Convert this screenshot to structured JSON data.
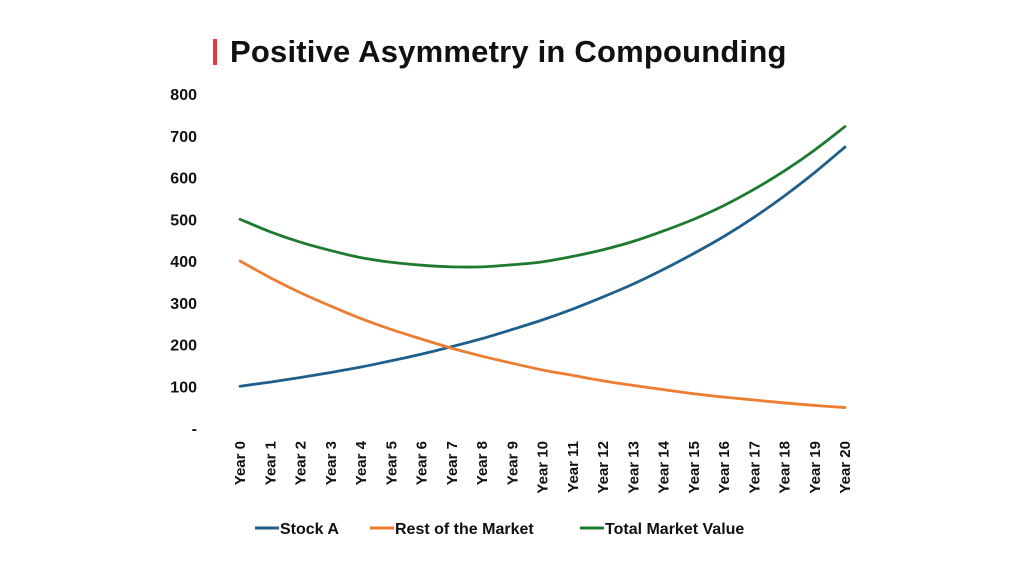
{
  "chart_data": {
    "type": "line",
    "title": "Positive Asymmetry in Compounding",
    "xlabel": "",
    "ylabel": "",
    "categories": [
      "Year 0",
      "Year 1",
      "Year 2",
      "Year 3",
      "Year 4",
      "Year 5",
      "Year 6",
      "Year 7",
      "Year 8",
      "Year 9",
      "Year 10",
      "Year 11",
      "Year 12",
      "Year 13",
      "Year 14",
      "Year 15",
      "Year 16",
      "Year 17",
      "Year 18",
      "Year 19",
      "Year 20"
    ],
    "ylim": [
      0,
      800
    ],
    "yticks": [
      0,
      100,
      200,
      300,
      400,
      500,
      600,
      700,
      800
    ],
    "ytick_labels": [
      "-",
      "100",
      "200",
      "300",
      "400",
      "500",
      "600",
      "700",
      "800"
    ],
    "grid": false,
    "legend_position": "bottom",
    "series": [
      {
        "name": "Stock A",
        "color": "#1f5f8b",
        "values": [
          100,
          110,
          121,
          133,
          146,
          161,
          177,
          195,
          214,
          236,
          259,
          285,
          314,
          345,
          380,
          418,
          459,
          505,
          556,
          612,
          673
        ]
      },
      {
        "name": "Rest of the Market",
        "color": "#ed7d31",
        "values": [
          400,
          360,
          324,
          292,
          262,
          236,
          213,
          191,
          172,
          155,
          139,
          126,
          113,
          102,
          92,
          82,
          74,
          67,
          60,
          54,
          49
        ]
      },
      {
        "name": "Total Market Value",
        "color": "#1e7a2e",
        "values": [
          500,
          470,
          445,
          425,
          408,
          397,
          390,
          386,
          386,
          391,
          398,
          411,
          427,
          447,
          472,
          500,
          533,
          572,
          616,
          666,
          722
        ]
      }
    ],
    "accent_color": "#e8383d"
  }
}
